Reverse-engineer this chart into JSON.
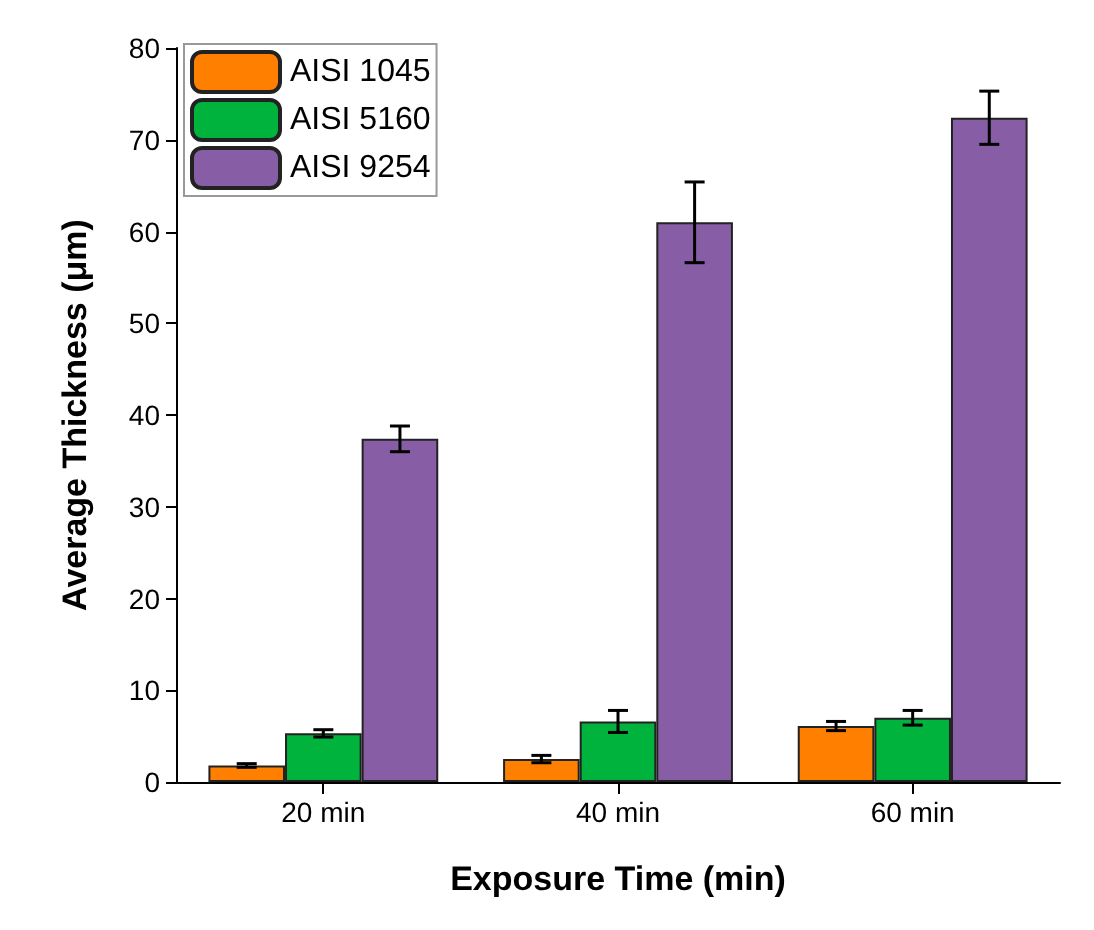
{
  "chart_data": {
    "type": "bar",
    "xlabel": "Exposure Time (min)",
    "ylabel": "Average Thickness (μm)",
    "categories": [
      "20 min",
      "40 min",
      "60 min"
    ],
    "series": [
      {
        "name": "AISI 1045",
        "color": "#ff8000",
        "values": [
          1.8,
          2.5,
          6.1
        ],
        "errors": [
          0.2,
          0.4,
          0.5
        ]
      },
      {
        "name": "AISI 5160",
        "color": "#00b33c",
        "values": [
          5.3,
          6.6,
          7.0
        ],
        "errors": [
          0.4,
          1.2,
          0.8
        ]
      },
      {
        "name": "AISI 9254",
        "color": "#875ea6",
        "values": [
          37.4,
          61.0,
          72.4
        ],
        "errors": [
          1.4,
          4.4,
          2.9
        ]
      }
    ],
    "ylim": [
      0,
      80
    ],
    "yticks": [
      0,
      10,
      20,
      30,
      40,
      50,
      60,
      70,
      80
    ],
    "legend": "top left",
    "grid": false
  }
}
